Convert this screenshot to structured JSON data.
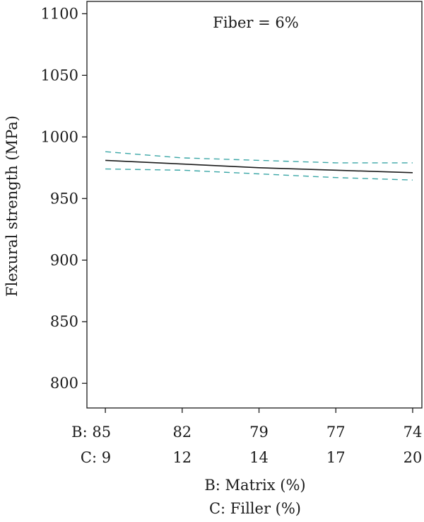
{
  "chart_data": {
    "type": "line",
    "annotation": "Fiber = 6%",
    "ylabel": "Flexural strength (MPa)",
    "xlabel_lines": [
      "B: Matrix (%)",
      "C: Filler (%)"
    ],
    "ylim": [
      780,
      1110
    ],
    "yticks": [
      800,
      850,
      900,
      950,
      1000,
      1050,
      1100
    ],
    "x_rows": [
      {
        "prefix": "B: ",
        "labels": [
          "85",
          "82",
          "79",
          "77",
          "74"
        ]
      },
      {
        "prefix": "C: ",
        "labels": [
          "9",
          "12",
          "14",
          "17",
          "20"
        ]
      }
    ],
    "x": [
      0,
      0.25,
      0.5,
      0.75,
      1.0
    ],
    "xlim": [
      -0.06,
      1.03
    ],
    "series": [
      {
        "style": "solid",
        "color": "#1a1a1a",
        "values": [
          981,
          978,
          975,
          973,
          971
        ]
      },
      {
        "style": "dashed",
        "color": "#3aa6a6",
        "values": [
          988,
          983,
          981,
          979,
          979
        ]
      },
      {
        "style": "dashed",
        "color": "#3aa6a6",
        "values": [
          974,
          973,
          970,
          967,
          965
        ]
      }
    ],
    "grid": false
  }
}
